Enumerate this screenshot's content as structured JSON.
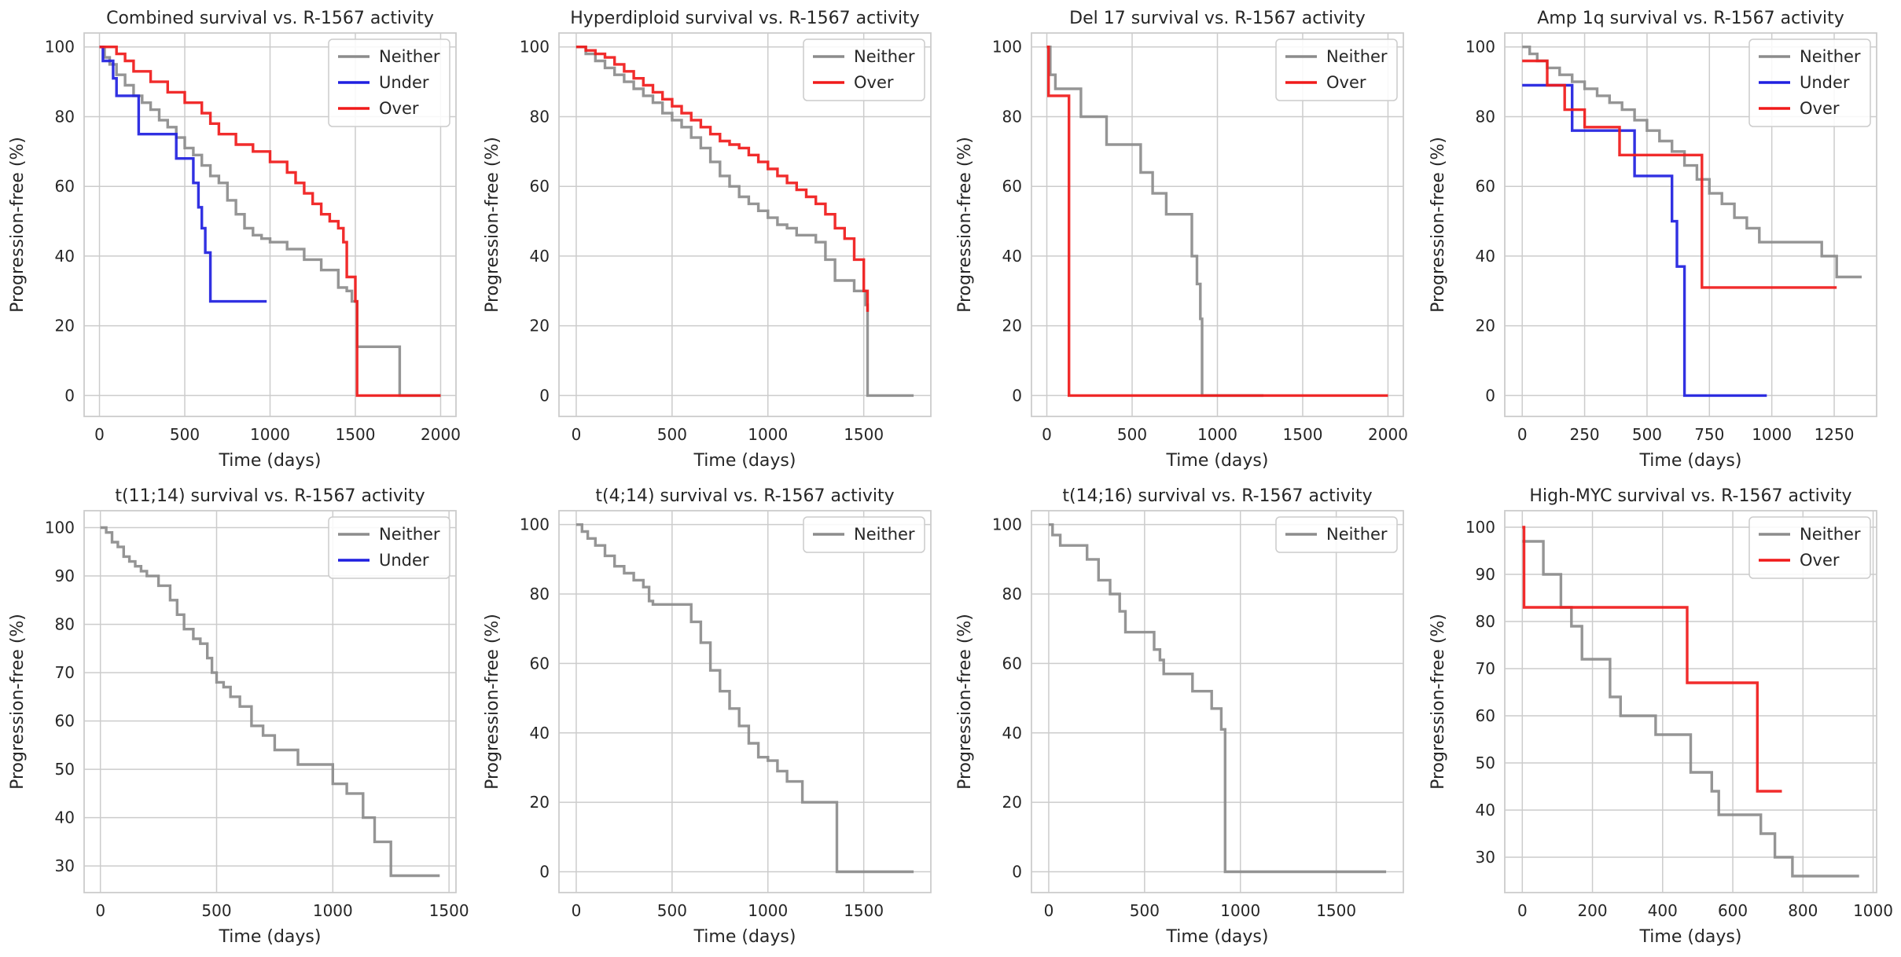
{
  "figure": {
    "colors": {
      "Neither": "#8c8c8c",
      "Under": "#1f1fe0",
      "Over": "#f01a1a"
    }
  },
  "chart_data": [
    {
      "type": "line",
      "step": true,
      "title": "Combined survival vs. R-1567 activity",
      "xlabel": "Time (days)",
      "ylabel": "Progression-free (%)",
      "xlim": [
        -90,
        2090
      ],
      "ylim": [
        -6,
        104
      ],
      "xticks": [
        0,
        500,
        1000,
        1500,
        2000
      ],
      "yticks": [
        0,
        20,
        40,
        60,
        80,
        100
      ],
      "legend": "top-right",
      "series": [
        {
          "name": "Neither",
          "x": [
            0,
            30,
            60,
            100,
            150,
            200,
            250,
            300,
            350,
            400,
            450,
            500,
            550,
            600,
            650,
            700,
            750,
            800,
            850,
            900,
            950,
            1000,
            1100,
            1200,
            1300,
            1400,
            1450,
            1480,
            1510,
            1760,
            2000
          ],
          "y": [
            100,
            97,
            95,
            92,
            89,
            86,
            84,
            82,
            79,
            77,
            74,
            71,
            69,
            66,
            63,
            61,
            56,
            52,
            48,
            46,
            45,
            44,
            42,
            39,
            36,
            31,
            30,
            27,
            14,
            0,
            0
          ]
        },
        {
          "name": "Under",
          "x": [
            0,
            20,
            80,
            100,
            230,
            450,
            550,
            580,
            600,
            620,
            650,
            980
          ],
          "y": [
            100,
            96,
            91,
            86,
            75,
            68,
            61,
            54,
            48,
            41,
            27,
            27
          ]
        },
        {
          "name": "Over",
          "x": [
            0,
            100,
            150,
            200,
            300,
            400,
            500,
            600,
            650,
            700,
            800,
            900,
            1000,
            1100,
            1150,
            1200,
            1250,
            1300,
            1350,
            1400,
            1430,
            1450,
            1500,
            1510,
            2000
          ],
          "y": [
            100,
            98,
            96,
            93,
            90,
            87,
            84,
            81,
            78,
            75,
            72,
            70,
            67,
            64,
            61,
            58,
            55,
            52,
            50,
            48,
            44,
            34,
            27,
            0,
            0
          ]
        }
      ]
    },
    {
      "type": "line",
      "step": true,
      "title": "Hyperdiploid survival vs. R-1567 activity",
      "xlabel": "Time (days)",
      "ylabel": "Progression-free (%)",
      "xlim": [
        -90,
        1850
      ],
      "ylim": [
        -6,
        104
      ],
      "xticks": [
        0,
        500,
        1000,
        1500
      ],
      "yticks": [
        0,
        20,
        40,
        60,
        80,
        100
      ],
      "legend": "top-right",
      "series": [
        {
          "name": "Neither",
          "x": [
            0,
            50,
            100,
            150,
            200,
            250,
            300,
            350,
            400,
            450,
            500,
            550,
            600,
            650,
            700,
            750,
            800,
            850,
            900,
            950,
            1000,
            1050,
            1100,
            1150,
            1200,
            1250,
            1300,
            1350,
            1400,
            1450,
            1500,
            1510,
            1520,
            1760
          ],
          "y": [
            100,
            98,
            96,
            94,
            92,
            90,
            88,
            86,
            84,
            81,
            79,
            77,
            74,
            71,
            67,
            63,
            60,
            57,
            55,
            53,
            51,
            49,
            48,
            46,
            46,
            44,
            39,
            33,
            33,
            30,
            30,
            26,
            0,
            0
          ]
        },
        {
          "name": "Over",
          "x": [
            0,
            50,
            100,
            150,
            200,
            250,
            300,
            350,
            400,
            450,
            500,
            550,
            600,
            650,
            700,
            750,
            800,
            850,
            900,
            950,
            1000,
            1050,
            1100,
            1150,
            1200,
            1250,
            1300,
            1350,
            1400,
            1450,
            1500,
            1520
          ],
          "y": [
            100,
            99,
            98,
            97,
            95,
            93,
            91,
            89,
            87,
            85,
            83,
            81,
            79,
            77,
            75,
            73,
            72,
            71,
            69,
            67,
            65,
            63,
            61,
            59,
            57,
            55,
            52,
            48,
            45,
            39,
            30,
            24
          ]
        }
      ]
    },
    {
      "type": "line",
      "step": true,
      "title": "Del 17 survival vs. R-1567 activity",
      "xlabel": "Time (days)",
      "ylabel": "Progression-free (%)",
      "xlim": [
        -90,
        2090
      ],
      "ylim": [
        -6,
        104
      ],
      "xticks": [
        0,
        500,
        1000,
        1500,
        2000
      ],
      "yticks": [
        0,
        20,
        40,
        60,
        80,
        100
      ],
      "legend": "top-right",
      "series": [
        {
          "name": "Neither",
          "x": [
            0,
            20,
            50,
            120,
            200,
            350,
            550,
            620,
            700,
            850,
            880,
            900,
            910,
            1270
          ],
          "y": [
            100,
            92,
            88,
            88,
            80,
            72,
            64,
            58,
            52,
            40,
            32,
            22,
            0,
            0
          ]
        },
        {
          "name": "Over",
          "x": [
            0,
            10,
            130,
            2000
          ],
          "y": [
            100,
            86,
            0,
            0
          ]
        }
      ]
    },
    {
      "type": "line",
      "step": true,
      "title": "Amp 1q survival vs. R-1567 activity",
      "xlabel": "Time (days)",
      "ylabel": "Progression-free (%)",
      "xlim": [
        -70,
        1420
      ],
      "ylim": [
        -6,
        104
      ],
      "xticks": [
        0,
        250,
        500,
        750,
        1000,
        1250
      ],
      "yticks": [
        0,
        20,
        40,
        60,
        80,
        100
      ],
      "legend": "top-right",
      "series": [
        {
          "name": "Neither",
          "x": [
            0,
            30,
            60,
            100,
            150,
            200,
            250,
            300,
            350,
            400,
            450,
            500,
            550,
            600,
            650,
            700,
            750,
            800,
            850,
            900,
            950,
            1000,
            1100,
            1200,
            1260,
            1360
          ],
          "y": [
            100,
            98,
            96,
            94,
            92,
            90,
            88,
            86,
            84,
            82,
            79,
            76,
            73,
            70,
            66,
            62,
            58,
            55,
            51,
            48,
            44,
            44,
            44,
            40,
            34,
            34
          ]
        },
        {
          "name": "Under",
          "x": [
            0,
            200,
            450,
            600,
            620,
            650,
            980
          ],
          "y": [
            89,
            76,
            63,
            50,
            37,
            0,
            0
          ]
        },
        {
          "name": "Over",
          "x": [
            0,
            100,
            170,
            250,
            390,
            720,
            1260
          ],
          "y": [
            96,
            89,
            82,
            77,
            69,
            31,
            31
          ]
        }
      ]
    },
    {
      "type": "line",
      "step": true,
      "title": "t(11;14) survival vs. R-1567 activity",
      "xlabel": "Time (days)",
      "ylabel": "Progression-free (%)",
      "xlim": [
        -70,
        1530
      ],
      "ylim": [
        24.5,
        103.5
      ],
      "xticks": [
        0,
        500,
        1000,
        1500
      ],
      "yticks": [
        30,
        40,
        50,
        60,
        70,
        80,
        90,
        100
      ],
      "legend": "top-right",
      "series": [
        {
          "name": "Neither",
          "x": [
            0,
            25,
            50,
            75,
            100,
            125,
            150,
            175,
            200,
            250,
            300,
            330,
            360,
            400,
            430,
            460,
            480,
            500,
            530,
            560,
            600,
            650,
            700,
            750,
            850,
            1000,
            1060,
            1130,
            1180,
            1250,
            1460
          ],
          "y": [
            100,
            99,
            97,
            96,
            94,
            93,
            92,
            91,
            90,
            88,
            85,
            82,
            79,
            77,
            76,
            73,
            70,
            68,
            67,
            65,
            63,
            59,
            57,
            54,
            51,
            47,
            45,
            40,
            35,
            28,
            28
          ]
        },
        {
          "name": "Under",
          "x": [],
          "y": []
        }
      ]
    },
    {
      "type": "line",
      "step": true,
      "title": "t(4;14) survival vs. R-1567 activity",
      "xlabel": "Time (days)",
      "ylabel": "Progression-free (%)",
      "xlim": [
        -90,
        1850
      ],
      "ylim": [
        -6,
        104
      ],
      "xticks": [
        0,
        500,
        1000,
        1500
      ],
      "yticks": [
        0,
        20,
        40,
        60,
        80,
        100
      ],
      "legend": "top-right",
      "series": [
        {
          "name": "Neither",
          "x": [
            0,
            30,
            60,
            100,
            150,
            200,
            250,
            300,
            350,
            380,
            400,
            450,
            500,
            600,
            650,
            700,
            750,
            800,
            850,
            900,
            950,
            1000,
            1050,
            1100,
            1180,
            1360,
            1760
          ],
          "y": [
            100,
            98,
            96,
            94,
            91,
            88,
            86,
            84,
            82,
            78,
            77,
            77,
            77,
            72,
            66,
            58,
            52,
            47,
            42,
            37,
            33,
            32,
            29,
            26,
            20,
            0,
            0
          ]
        }
      ]
    },
    {
      "type": "line",
      "step": true,
      "title": "t(14;16) survival vs. R-1567 activity",
      "xlabel": "Time (days)",
      "ylabel": "Progression-free (%)",
      "xlim": [
        -90,
        1850
      ],
      "ylim": [
        -6,
        104
      ],
      "xticks": [
        0,
        500,
        1000,
        1500
      ],
      "yticks": [
        0,
        20,
        40,
        60,
        80,
        100
      ],
      "legend": "top-right",
      "series": [
        {
          "name": "Neither",
          "x": [
            0,
            20,
            60,
            200,
            260,
            320,
            370,
            400,
            550,
            580,
            600,
            750,
            850,
            900,
            920,
            1760
          ],
          "y": [
            100,
            97,
            94,
            90,
            84,
            80,
            75,
            69,
            64,
            61,
            57,
            52,
            47,
            41,
            0,
            0
          ]
        }
      ]
    },
    {
      "type": "line",
      "step": true,
      "title": "High-MYC survival vs. R-1567 activity",
      "xlabel": "Time (days)",
      "ylabel": "Progression-free (%)",
      "xlim": [
        -50,
        1010
      ],
      "ylim": [
        22.5,
        103.5
      ],
      "xticks": [
        0,
        200,
        400,
        600,
        800,
        1000
      ],
      "yticks": [
        30,
        40,
        50,
        60,
        70,
        80,
        90,
        100
      ],
      "legend": "top-right",
      "series": [
        {
          "name": "Neither",
          "x": [
            0,
            60,
            110,
            140,
            170,
            250,
            280,
            380,
            480,
            540,
            560,
            680,
            720,
            770,
            960
          ],
          "y": [
            97,
            90,
            83,
            79,
            72,
            64,
            60,
            56,
            48,
            44,
            39,
            35,
            30,
            26,
            26
          ]
        },
        {
          "name": "Over",
          "x": [
            0,
            5,
            470,
            670,
            740
          ],
          "y": [
            100,
            83,
            67,
            44,
            44
          ]
        }
      ]
    }
  ]
}
